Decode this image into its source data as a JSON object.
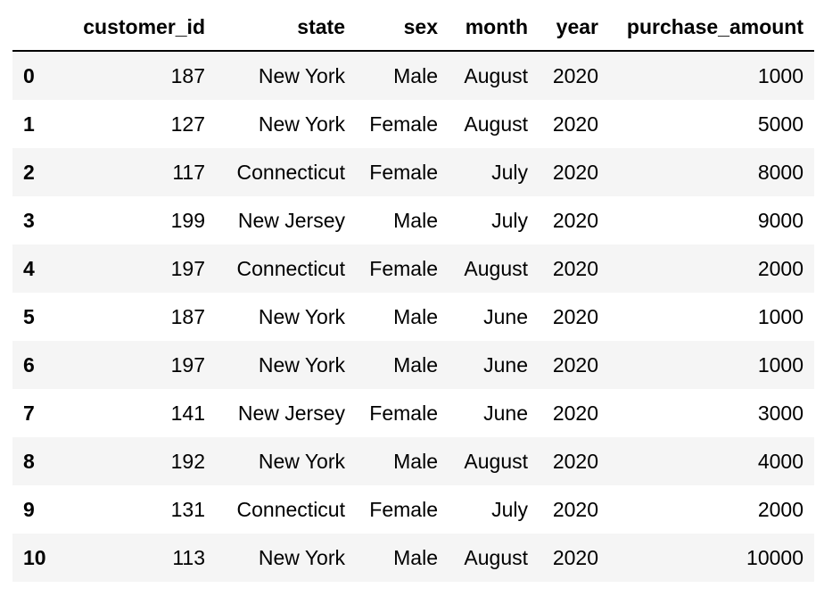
{
  "table": {
    "index_header": "",
    "columns": [
      "customer_id",
      "state",
      "sex",
      "month",
      "year",
      "purchase_amount"
    ],
    "rows": [
      {
        "index": "0",
        "customer_id": "187",
        "state": "New York",
        "sex": "Male",
        "month": "August",
        "year": "2020",
        "purchase_amount": "1000"
      },
      {
        "index": "1",
        "customer_id": "127",
        "state": "New York",
        "sex": "Female",
        "month": "August",
        "year": "2020",
        "purchase_amount": "5000"
      },
      {
        "index": "2",
        "customer_id": "117",
        "state": "Connecticut",
        "sex": "Female",
        "month": "July",
        "year": "2020",
        "purchase_amount": "8000"
      },
      {
        "index": "3",
        "customer_id": "199",
        "state": "New Jersey",
        "sex": "Male",
        "month": "July",
        "year": "2020",
        "purchase_amount": "9000"
      },
      {
        "index": "4",
        "customer_id": "197",
        "state": "Connecticut",
        "sex": "Female",
        "month": "August",
        "year": "2020",
        "purchase_amount": "2000"
      },
      {
        "index": "5",
        "customer_id": "187",
        "state": "New York",
        "sex": "Male",
        "month": "June",
        "year": "2020",
        "purchase_amount": "1000"
      },
      {
        "index": "6",
        "customer_id": "197",
        "state": "New York",
        "sex": "Male",
        "month": "June",
        "year": "2020",
        "purchase_amount": "1000"
      },
      {
        "index": "7",
        "customer_id": "141",
        "state": "New Jersey",
        "sex": "Female",
        "month": "June",
        "year": "2020",
        "purchase_amount": "3000"
      },
      {
        "index": "8",
        "customer_id": "192",
        "state": "New York",
        "sex": "Male",
        "month": "August",
        "year": "2020",
        "purchase_amount": "4000"
      },
      {
        "index": "9",
        "customer_id": "131",
        "state": "Connecticut",
        "sex": "Female",
        "month": "July",
        "year": "2020",
        "purchase_amount": "2000"
      },
      {
        "index": "10",
        "customer_id": "113",
        "state": "New York",
        "sex": "Male",
        "month": "August",
        "year": "2020",
        "purchase_amount": "10000"
      }
    ]
  },
  "colors": {
    "stripe": "#f5f5f5",
    "header_border": "#000000",
    "text": "#000000"
  }
}
